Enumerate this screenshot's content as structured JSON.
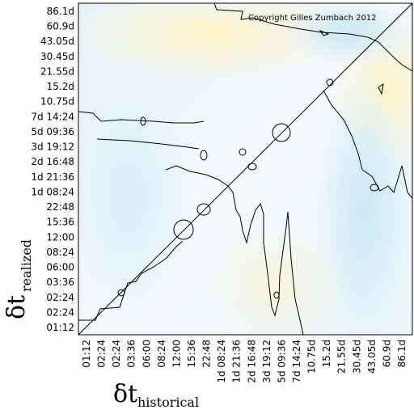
{
  "chart_data": {
    "type": "heatmap",
    "title": "",
    "copyright": "Copyright Gilles Zumbach 2012",
    "xlabel": {
      "symbol": "δt",
      "subscript": "historical"
    },
    "ylabel": {
      "symbol": "δt",
      "subscript": "realized"
    },
    "x_ticks": [
      "01:12",
      "02:24",
      "02:24",
      "03:36",
      "06:00",
      "08:24",
      "12:00",
      "15:36",
      "22:48",
      "1d 08:24",
      "1d 21:36",
      "2d 16:48",
      "3d 19:12",
      "5d 09:36",
      "7d 14:24",
      "10.75d",
      "15.2d",
      "21.55d",
      "30.45d",
      "43.05d",
      "60.9d",
      "86.1d"
    ],
    "y_ticks": [
      "01:12",
      "02:24",
      "02:24",
      "03:36",
      "06:00",
      "08:24",
      "12:00",
      "15:36",
      "22:48",
      "1d 08:24",
      "1d 21:36",
      "2d 16:48",
      "3d 19:12",
      "5d 09:36",
      "7d 14:24",
      "10.75d",
      "15.2d",
      "21.55d",
      "30.45d",
      "43.05d",
      "60.9d",
      "86.1d"
    ],
    "color_scale": {
      "low": "#cfe9f6",
      "mid": "#ffffff",
      "high": "#fdf3c8"
    },
    "diagonal_line": true,
    "contour_color": "#000000"
  }
}
